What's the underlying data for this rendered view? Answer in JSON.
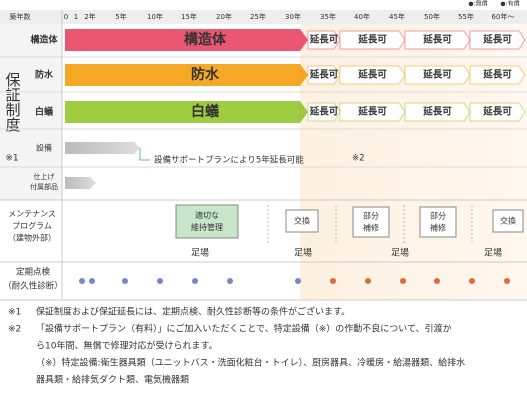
{
  "header": {
    "axis_label": "築年数",
    "years": [
      "0",
      "1",
      "2年",
      "5年",
      "10年",
      "15年",
      "20年",
      "25年",
      "30年",
      "35年",
      "40年",
      "45年",
      "50年",
      "55年",
      "60年～"
    ]
  },
  "legend": {
    "free": "●:無償",
    "paid": "●:有償"
  },
  "warranty": {
    "side_label": "保証制度",
    "side_note": "※1",
    "rows": [
      {
        "label": "構造体",
        "bar": "構造体",
        "extension": [
          "延長可",
          "延長可",
          "延長可",
          "延長可"
        ]
      },
      {
        "label": "防水",
        "bar": "防水",
        "extension": [
          "延長可",
          "延長可",
          "延長可",
          "延長可"
        ]
      },
      {
        "label": "白蟻",
        "bar": "白蟻",
        "extension": [
          "延長可",
          "延長可",
          "延長可",
          "延長可"
        ]
      },
      {
        "label": "設備",
        "note": "設備サポートプランにより5年延長可能",
        "note_mark": "※2"
      },
      {
        "label_lines": [
          "仕上げ",
          "付属部品"
        ]
      }
    ]
  },
  "maintenance": {
    "label_lines": [
      "メンテナンス",
      "プログラム",
      "（建物外部）"
    ],
    "items": [
      [
        "適切な",
        "維持管理"
      ],
      [
        "交換"
      ],
      [
        "部分",
        "補修"
      ],
      [
        "部分",
        "補修"
      ],
      [
        "交換"
      ]
    ],
    "scaffold": [
      "足場",
      "足場",
      "足場",
      "足場"
    ]
  },
  "inspection": {
    "label_lines": [
      "定期点検",
      "（耐久性診断）"
    ]
  },
  "notes": [
    {
      "mark": "※1",
      "lines": [
        "保証制度および保証延長には、定期点検、耐久性診断等の条件がございます。"
      ]
    },
    {
      "mark": "※2",
      "lines": [
        "「設備サポートプラン（有料）」にご加入いただくことで、特定設備（※）の作動不良について、引渡か",
        "ら10年間、無償で修理対応が受けられます。",
        "（※）特定設備:衛生器具類（ユニットバス・洗面化粧台・トイレ）、厨房器具、冷暖房・給湯器類、給排水",
        "器具類・給排気ダクト類、電気機器類"
      ]
    }
  ]
}
